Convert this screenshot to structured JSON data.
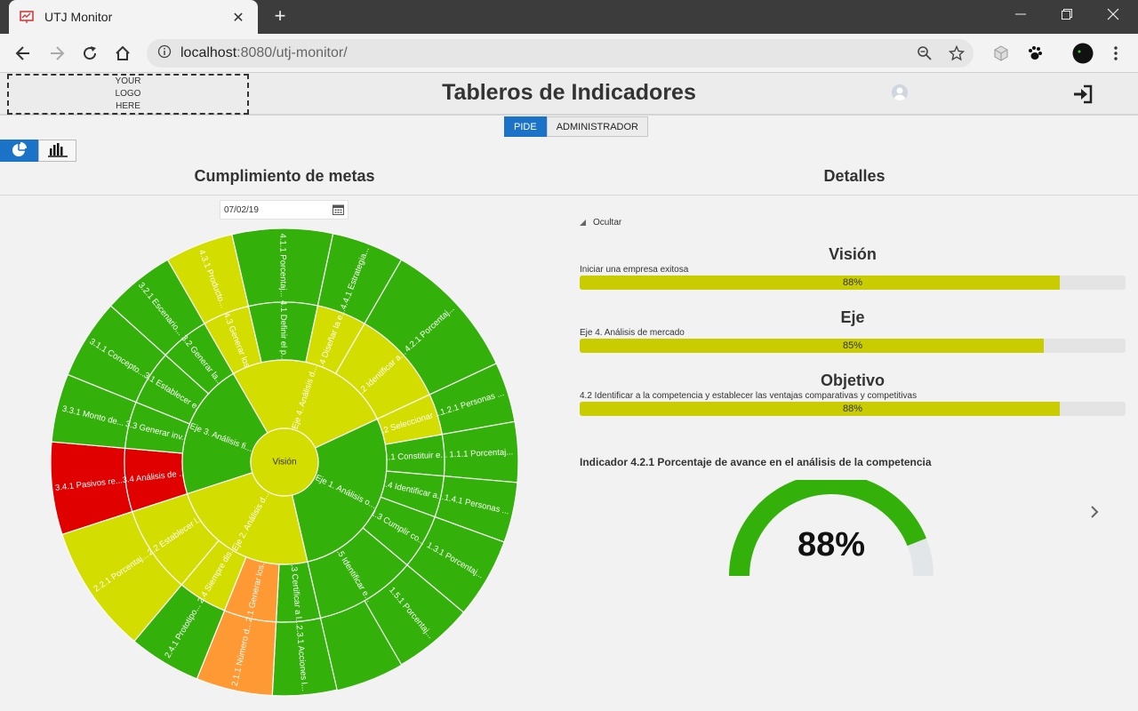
{
  "browser": {
    "tab_title": "UTJ Monitor",
    "url_host": "localhost",
    "url_path": ":8080/utj-monitor/",
    "icons": [
      "back-icon",
      "forward-icon",
      "reload-icon",
      "home-icon",
      "info-icon",
      "zoom-icon",
      "star-icon",
      "extension-icon",
      "paw-icon",
      "profile-icon",
      "menu-icon"
    ]
  },
  "header": {
    "logo_lines": [
      "YOUR",
      "LOGO",
      "HERE"
    ],
    "title": "Tableros de Indicadores"
  },
  "tabs": [
    {
      "label": "PIDE",
      "active": true
    },
    {
      "label": "ADMINISTRADOR",
      "active": false
    }
  ],
  "left": {
    "title": "Cumplimiento de metas",
    "date": "07/02/19"
  },
  "sunburst": {
    "center": "Visión",
    "colors": {
      "green": "#33b10a",
      "yellow": "#d4dd00",
      "red": "#e00000",
      "orange": "#ff9933"
    },
    "ejes": [
      {
        "label": "Eje 1. Análisis o...",
        "color": "green",
        "start": 65,
        "end": 167
      },
      {
        "label": "Eje 2. Análisis d...",
        "color": "yellow",
        "start": 167,
        "end": 252
      },
      {
        "label": "Eje 3. Análisis fi...",
        "color": "green",
        "start": 252,
        "end": 330
      },
      {
        "label": "Eje 4. Análisis d...",
        "color": "yellow",
        "start": 330,
        "end": 425
      }
    ],
    "objetivos": [
      {
        "label": "1.1 Constituir e...",
        "color": "green",
        "start": 80,
        "end": 95
      },
      {
        "label": "1.2 Seleccionar ...",
        "color": "yellow",
        "start": 65,
        "end": 80
      },
      {
        "label": "1.4 Identificar a...",
        "color": "green",
        "start": 95,
        "end": 110
      },
      {
        "label": "1.3 Cumplir co...",
        "color": "green",
        "start": 110,
        "end": 130
      },
      {
        "label": "1.5 Identificar e...",
        "color": "green",
        "start": 130,
        "end": 167
      },
      {
        "label": "2.3 Certificar a l...",
        "color": "green",
        "start": 167,
        "end": 183
      },
      {
        "label": "2.1 Generar los...",
        "color": "orange",
        "start": 183,
        "end": 202
      },
      {
        "label": "2.4 Siempre dis...",
        "color": "yellow",
        "start": 202,
        "end": 220
      },
      {
        "label": "2.2 Establecer l...",
        "color": "yellow",
        "start": 220,
        "end": 252
      },
      {
        "label": "3.4 Análisis de ...",
        "color": "red",
        "start": 252,
        "end": 275
      },
      {
        "label": "3.3 Generar inv...",
        "color": "green",
        "start": 275,
        "end": 292
      },
      {
        "label": "3.1 Establecer e...",
        "color": "green",
        "start": 292,
        "end": 312
      },
      {
        "label": "3.2 Generar la...",
        "color": "green",
        "start": 312,
        "end": 330
      },
      {
        "label": "4.3 Generar los",
        "color": "yellow",
        "start": 330,
        "end": 347
      },
      {
        "label": "4.1 Definir el p...",
        "color": "green",
        "start": 347,
        "end": 372
      },
      {
        "label": "4.4 Diseñar la e...",
        "color": "yellow",
        "start": 372,
        "end": 390
      },
      {
        "label": "4.2 Identificar a...",
        "color": "yellow",
        "start": 390,
        "end": 425
      }
    ],
    "indicadores": [
      {
        "label": "1.2.1 Personas ...",
        "color": "green",
        "start": 65,
        "end": 80
      },
      {
        "label": "1.1.1 Porcentaj...",
        "color": "green",
        "start": 80,
        "end": 95
      },
      {
        "label": "1.4.1 Personas ...",
        "color": "green",
        "start": 95,
        "end": 110
      },
      {
        "label": "1.3.1 Porcentaj...",
        "color": "green",
        "start": 110,
        "end": 130
      },
      {
        "label": "1.5.1 Porcentaj...",
        "color": "green",
        "start": 130,
        "end": 150
      },
      {
        "label": "2.3.1 Acciones l...",
        "color": "green",
        "start": 167,
        "end": 183
      },
      {
        "label": "2.1.1 Número d...",
        "color": "orange",
        "start": 183,
        "end": 202
      },
      {
        "label": "2.4.1 Prototipo...",
        "color": "green",
        "start": 202,
        "end": 220
      },
      {
        "label": "2.2.1 Porcentaj...",
        "color": "yellow",
        "start": 220,
        "end": 252
      },
      {
        "label": "3.4.1 Pasivos re...",
        "color": "red",
        "start": 252,
        "end": 275
      },
      {
        "label": "3.3.1 Monto de...",
        "color": "green",
        "start": 275,
        "end": 292
      },
      {
        "label": "3.1.1 Concepto...",
        "color": "green",
        "start": 292,
        "end": 312
      },
      {
        "label": "3.2.1 Escenario...",
        "color": "green",
        "start": 312,
        "end": 330
      },
      {
        "label": "4.3.1 Producto...",
        "color": "yellow",
        "start": 330,
        "end": 347
      },
      {
        "label": "4.1.1 Porcentaj...",
        "color": "green",
        "start": 347,
        "end": 372
      },
      {
        "label": "4.4.1 Estrategia...",
        "color": "green",
        "start": 372,
        "end": 390
      },
      {
        "label": "4.2.1 Porcentaj...",
        "color": "green",
        "start": 390,
        "end": 425
      }
    ]
  },
  "right": {
    "title": "Detalles",
    "toggle_label": "Ocultar",
    "blocks": [
      {
        "heading": "Visión",
        "desc": "Iniciar una empresa exitosa",
        "pct": 88,
        "pct_label": "88%"
      },
      {
        "heading": "Eje",
        "desc": "Eje 4. Análisis de mercado",
        "pct": 85,
        "pct_label": "85%"
      },
      {
        "heading": "Objetivo",
        "desc": "4.2 Identificar a la competencia y establecer las ventajas comparativas y competitivas",
        "pct": 88,
        "pct_label": "88%"
      }
    ],
    "indicator_title": "Indicador 4.2.1 Porcentaje de avance en el análisis de la competencia",
    "gauge": {
      "value": 88,
      "label": "88%",
      "fill_color": "#33b10a",
      "track_color": "#e3e6e8"
    }
  }
}
